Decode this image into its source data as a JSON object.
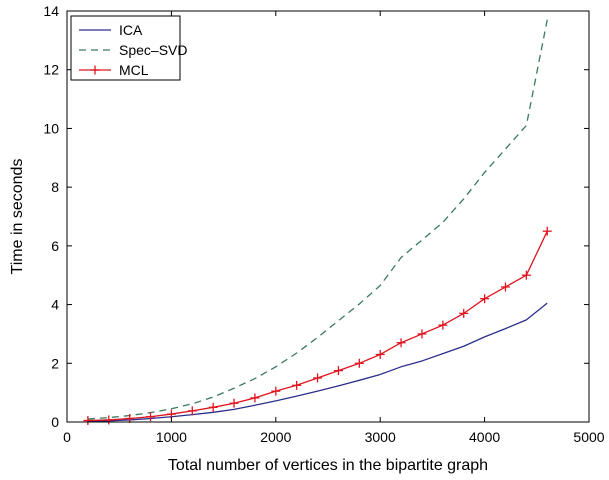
{
  "chart_data": {
    "type": "line",
    "title": "",
    "xlabel": "Total number of vertices in the bipartite graph",
    "ylabel": "Time in seconds",
    "xlim": [
      0,
      5000
    ],
    "ylim": [
      0,
      14
    ],
    "xticks": [
      0,
      1000,
      2000,
      3000,
      4000,
      5000
    ],
    "yticks": [
      0,
      2,
      4,
      6,
      8,
      10,
      12,
      14
    ],
    "grid": false,
    "legend_position": "top-left",
    "series": [
      {
        "name": "ICA",
        "color": "#2b2f8c",
        "line_style": "solid",
        "marker": "none",
        "x": [
          200,
          400,
          600,
          800,
          1000,
          1200,
          1400,
          1600,
          1800,
          2000,
          2200,
          2400,
          2600,
          2800,
          3000,
          3200,
          3400,
          3600,
          3800,
          4000,
          4200,
          4400,
          4600
        ],
        "y": [
          0.02,
          0.04,
          0.07,
          0.12,
          0.18,
          0.25,
          0.33,
          0.43,
          0.57,
          0.72,
          0.88,
          1.05,
          1.23,
          1.42,
          1.62,
          1.88,
          2.08,
          2.33,
          2.58,
          2.9,
          3.18,
          3.48,
          4.05
        ]
      },
      {
        "name": "Spec–SVD",
        "color": "#3a7a5a",
        "line_style": "dashed",
        "marker": "none",
        "x": [
          200,
          400,
          600,
          800,
          1000,
          1200,
          1400,
          1600,
          1800,
          2000,
          2200,
          2400,
          2600,
          2800,
          3000,
          3200,
          3400,
          3600,
          3800,
          4000,
          4200,
          4400,
          4600
        ],
        "y": [
          0.1,
          0.15,
          0.22,
          0.32,
          0.45,
          0.62,
          0.85,
          1.15,
          1.48,
          1.88,
          2.35,
          2.88,
          3.45,
          4.02,
          4.65,
          5.6,
          6.2,
          6.8,
          7.6,
          8.5,
          9.3,
          10.1,
          13.7
        ]
      },
      {
        "name": "MCL",
        "color": "#e0141e",
        "line_style": "solid",
        "marker": "plus",
        "x": [
          200,
          400,
          600,
          800,
          1000,
          1200,
          1400,
          1600,
          1800,
          2000,
          2200,
          2400,
          2600,
          2800,
          3000,
          3200,
          3400,
          3600,
          3800,
          4000,
          4200,
          4400,
          4600
        ],
        "y": [
          0.05,
          0.07,
          0.12,
          0.18,
          0.27,
          0.38,
          0.5,
          0.64,
          0.82,
          1.05,
          1.25,
          1.5,
          1.75,
          2.0,
          2.3,
          2.7,
          3.0,
          3.3,
          3.7,
          4.2,
          4.6,
          5.0,
          6.5
        ]
      }
    ]
  }
}
